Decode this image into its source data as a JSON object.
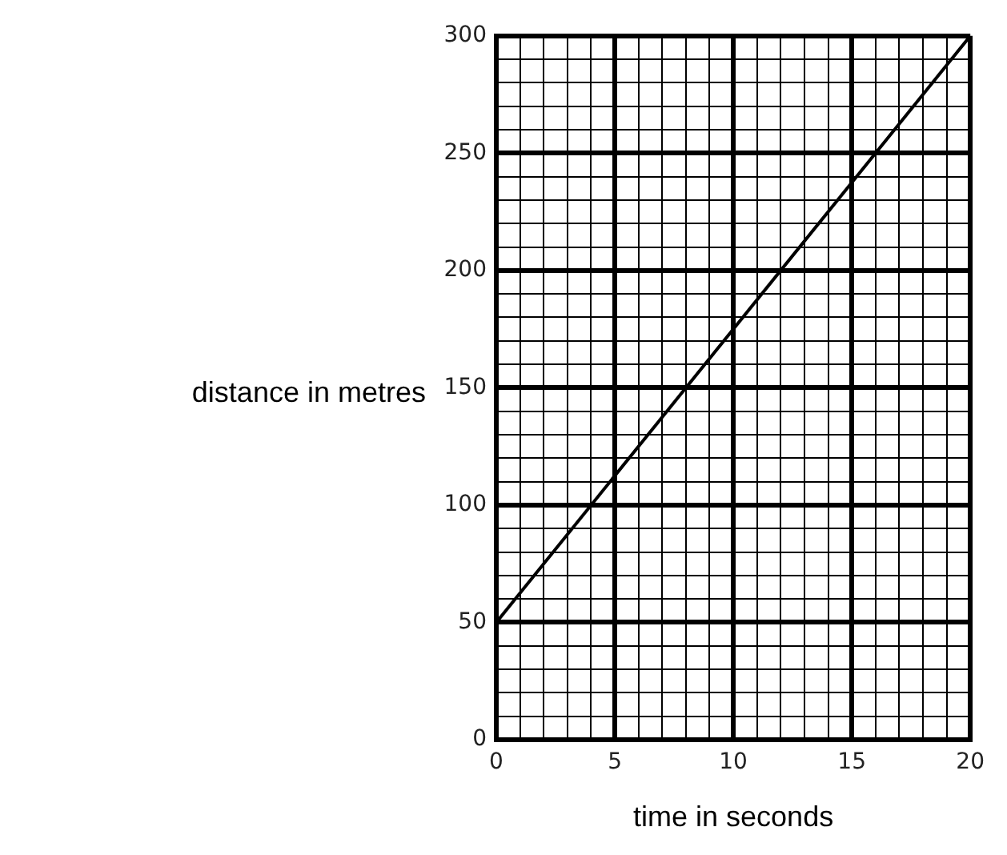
{
  "chart_data": {
    "type": "line",
    "xlabel": "time in seconds",
    "ylabel": "distance in metres",
    "x": [
      0,
      20
    ],
    "series": [
      {
        "color": "#000000",
        "values": [
          50,
          300
        ]
      }
    ],
    "xlim": [
      0,
      20
    ],
    "ylim": [
      0,
      300
    ],
    "xticks": [
      0,
      {
        "value": 1,
        "label": null
      },
      {
        "value": 2,
        "label": null
      },
      {
        "value": 3,
        "label": null
      },
      {
        "value": 4,
        "label": null
      },
      5,
      {
        "value": 6,
        "label": null
      },
      {
        "value": 7,
        "label": null
      },
      {
        "value": 8,
        "label": null
      },
      {
        "value": 9,
        "label": null
      },
      10,
      {
        "value": 11,
        "label": null
      },
      {
        "value": 12,
        "label": null
      },
      {
        "value": 13,
        "label": null
      },
      {
        "value": 14,
        "label": null
      },
      15,
      {
        "value": 16,
        "label": null
      },
      {
        "value": 17,
        "label": null
      },
      {
        "value": 18,
        "label": null
      },
      {
        "value": 19,
        "label": null
      },
      20
    ],
    "yticks": [
      0,
      {
        "value": 10,
        "label": null
      },
      {
        "value": 20,
        "label": null
      },
      {
        "value": 30,
        "label": null
      },
      {
        "value": 40,
        "label": null
      },
      50,
      {
        "value": 60,
        "label": null
      },
      {
        "value": 70,
        "label": null
      },
      {
        "value": 80,
        "label": null
      },
      {
        "value": 90,
        "label": null
      },
      100,
      {
        "value": 110,
        "label": null
      },
      {
        "value": 120,
        "label": null
      },
      {
        "value": 130,
        "label": null
      },
      {
        "value": 140,
        "label": null
      },
      150,
      {
        "value": 160,
        "label": null
      },
      {
        "value": 170,
        "label": null
      },
      {
        "value": 180,
        "label": null
      },
      {
        "value": 190,
        "label": null
      },
      200,
      {
        "value": 210,
        "label": null
      },
      {
        "value": 220,
        "label": null
      },
      {
        "value": 230,
        "label": null
      },
      {
        "value": 240,
        "label": null
      },
      250,
      {
        "value": 260,
        "label": null
      },
      {
        "value": 270,
        "label": null
      },
      {
        "value": 280,
        "label": null
      },
      {
        "value": 290,
        "label": null
      },
      300
    ],
    "grid": true,
    "legend": false
  }
}
